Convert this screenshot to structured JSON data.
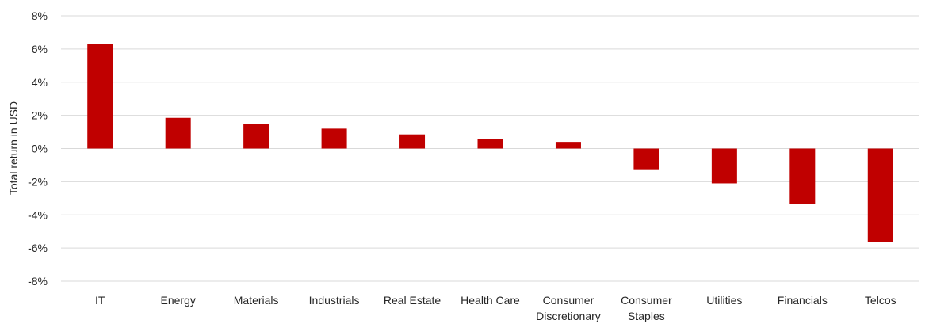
{
  "chart_data": {
    "type": "bar",
    "title": "",
    "xlabel": "",
    "ylabel": "Total return in USD",
    "categories": [
      "IT",
      "Energy",
      "Materials",
      "Industrials",
      "Real Estate",
      "Health Care",
      "Consumer Discretionary",
      "Consumer Staples",
      "Utilities",
      "Financials",
      "Telcos"
    ],
    "category_lines": [
      [
        "IT"
      ],
      [
        "Energy"
      ],
      [
        "Materials"
      ],
      [
        "Industrials"
      ],
      [
        "Real Estate"
      ],
      [
        "Health Care"
      ],
      [
        "Consumer",
        "Discretionary"
      ],
      [
        "Consumer",
        "Staples"
      ],
      [
        "Utilities"
      ],
      [
        "Financials"
      ],
      [
        "Telcos"
      ]
    ],
    "values": [
      6.3,
      1.85,
      1.5,
      1.2,
      0.85,
      0.55,
      0.4,
      -1.25,
      -2.1,
      -3.35,
      -5.65
    ],
    "ylim": [
      -8,
      8
    ],
    "yticks": [
      8,
      6,
      4,
      2,
      0,
      -2,
      -4,
      -6,
      -8
    ],
    "ytick_labels": [
      "8%",
      "6%",
      "4%",
      "2%",
      "0%",
      "-2%",
      "-4%",
      "-6%",
      "-8%"
    ],
    "grid": true,
    "legend": "none",
    "colors": {
      "bar": "#c00000",
      "grid": "#d9d9d9",
      "text": "#262626"
    }
  }
}
